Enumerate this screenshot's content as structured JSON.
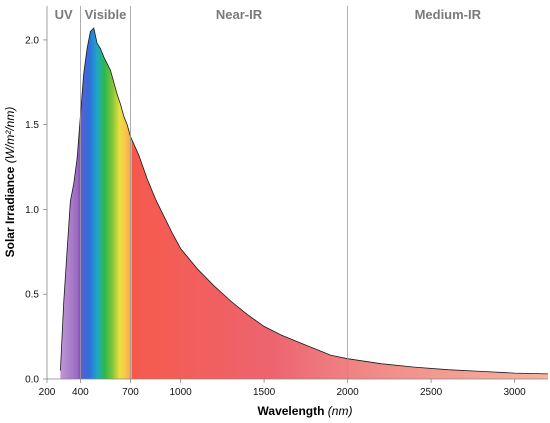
{
  "chart_data": {
    "type": "area",
    "xlabel": "Wavelength",
    "xlabel_unit": "(nm)",
    "ylabel": "Solar Irradiance",
    "ylabel_unit": "(W/m²/nm)",
    "xlim": [
      200,
      3200
    ],
    "ylim": [
      0,
      2.2
    ],
    "x_ticks": [
      200,
      400,
      700,
      1000,
      1500,
      2000,
      2500,
      3000
    ],
    "x_tick_labels": [
      "200",
      "400",
      "700",
      "1000",
      "1500",
      "2000",
      "2500",
      "3000"
    ],
    "y_ticks": [
      0,
      0.5,
      1.0,
      1.5,
      2.0
    ],
    "y_tick_labels": [
      "0.0",
      "0.5",
      "1.0",
      "1.5",
      "2.0"
    ],
    "regions": [
      {
        "label": "UV",
        "x_start": 200,
        "x_end": 400
      },
      {
        "label": "Visible",
        "x_start": 400,
        "x_end": 700
      },
      {
        "label": "Near-IR",
        "x_start": 700,
        "x_end": 2000
      },
      {
        "label": "Medium-IR",
        "x_start": 2000,
        "x_end": 3200
      }
    ],
    "series": [
      {
        "x": [
          280,
          300,
          320,
          340,
          360,
          380,
          400,
          420,
          440,
          460,
          480,
          500,
          520,
          540,
          560,
          580,
          600,
          620,
          640,
          660,
          680,
          700,
          750,
          800,
          850,
          900,
          950,
          1000,
          1100,
          1200,
          1300,
          1400,
          1500,
          1600,
          1700,
          1800,
          1900,
          2000,
          2200,
          2400,
          2600,
          2800,
          3000,
          3200
        ],
        "y": [
          0.05,
          0.45,
          0.75,
          1.05,
          1.15,
          1.3,
          1.55,
          1.8,
          1.95,
          2.05,
          2.07,
          1.98,
          1.95,
          1.9,
          1.86,
          1.82,
          1.75,
          1.68,
          1.62,
          1.55,
          1.5,
          1.43,
          1.32,
          1.18,
          1.06,
          0.96,
          0.86,
          0.77,
          0.65,
          0.55,
          0.46,
          0.38,
          0.31,
          0.26,
          0.22,
          0.18,
          0.14,
          0.12,
          0.09,
          0.07,
          0.055,
          0.045,
          0.035,
          0.03
        ]
      }
    ],
    "grid": false,
    "legend": "none"
  }
}
